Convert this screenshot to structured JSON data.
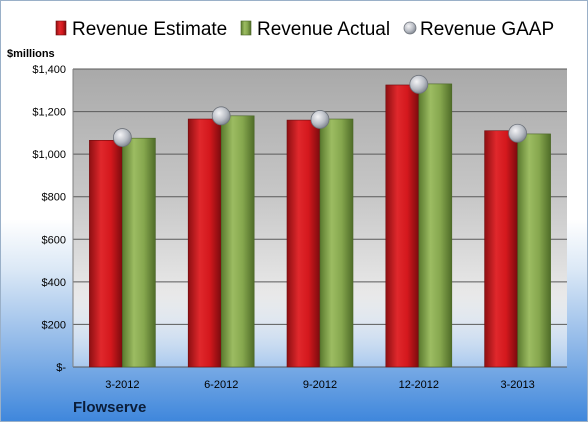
{
  "chart_data": {
    "type": "bar",
    "title": "",
    "xlabel": "",
    "ylabel": "$millions",
    "categories": [
      "3-2012",
      "6-2012",
      "9-2012",
      "12-2012",
      "3-2013"
    ],
    "series": [
      {
        "name": "Revenue Estimate",
        "kind": "bar",
        "color": "#c0161c",
        "values": [
          1065,
          1165,
          1160,
          1325,
          1110
        ]
      },
      {
        "name": "Revenue Actual",
        "kind": "bar",
        "color": "#7fa04a",
        "values": [
          1075,
          1180,
          1165,
          1330,
          1095
        ]
      },
      {
        "name": "Revenue GAAP",
        "kind": "marker",
        "color": "#b8bcc4",
        "values": [
          1078,
          1180,
          1163,
          1328,
          1098
        ]
      }
    ],
    "ylim": [
      0,
      1400
    ],
    "yticks": [
      0,
      200,
      400,
      600,
      800,
      1000,
      1200,
      1400
    ],
    "ytick_labels": [
      "$-",
      "$200",
      "$400",
      "$600",
      "$800",
      "$1,000",
      "$1,200",
      "$1,400"
    ],
    "grid": true,
    "legend_position": "top",
    "footer_label": "Flowserve"
  }
}
